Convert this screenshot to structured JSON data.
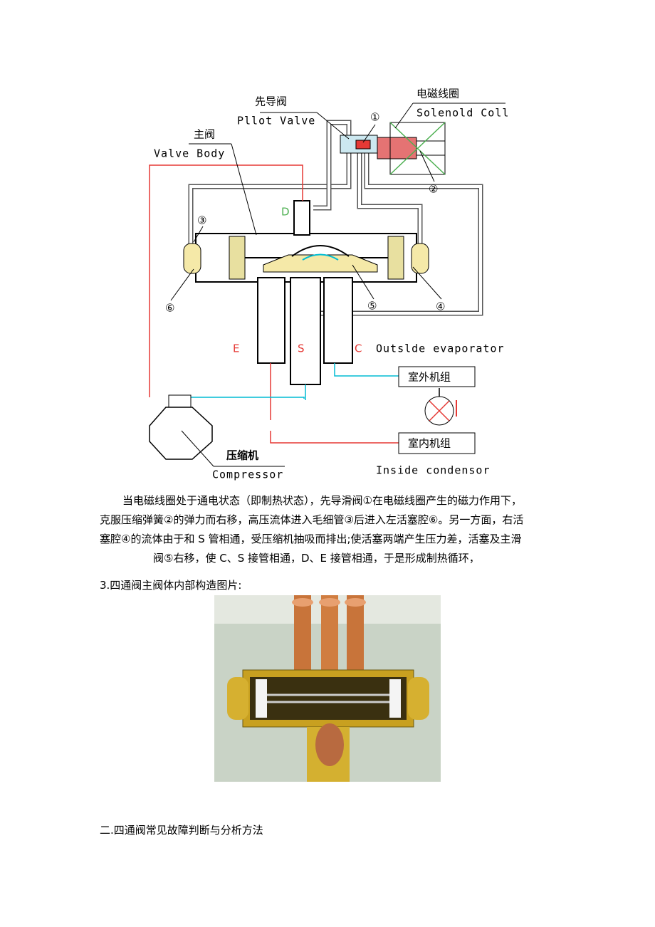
{
  "diagram": {
    "pilot_valve_cn": "先导阀",
    "pilot_valve_en": "Pllot Valve",
    "solenoid_cn": "电磁线圈",
    "solenoid_en": "Solenold Coll",
    "valve_body_cn": "主阀",
    "valve_body_en": "Valve Body",
    "markers": [
      "①",
      "②",
      "③",
      "④",
      "⑤",
      "⑥"
    ],
    "ports": [
      "D",
      "E",
      "S",
      "C"
    ],
    "outside_evaporator": "Outslde evaporator",
    "outdoor_unit": "室外机组",
    "indoor_unit": "室内机组",
    "compressor_cn": "压缩机",
    "compressor_en": "Compressor",
    "inside_condensor": "Inside condensor"
  },
  "paragraph": [
    "当电磁线圈处于通电状态（即制热状态），先导滑阀①在电磁线圈产生的磁力作用下，",
    "克服压缩弹簧②的弹力而右移，高压流体进入毛细管③后进入左活塞腔⑥。另一方面，右活",
    "塞腔④的流体由于和 S 管相通，受压缩机抽吸而排出;使活塞两端产生压力差，活塞及主滑",
    "阀⑤右移，使 C、S 接管相通，D、E 接管相通，于是形成制热循环，"
  ],
  "photo_caption": "3.四通阀主阀体内部构造图片:",
  "section_heading": "二.四通阀常见故障判断与分析方法"
}
